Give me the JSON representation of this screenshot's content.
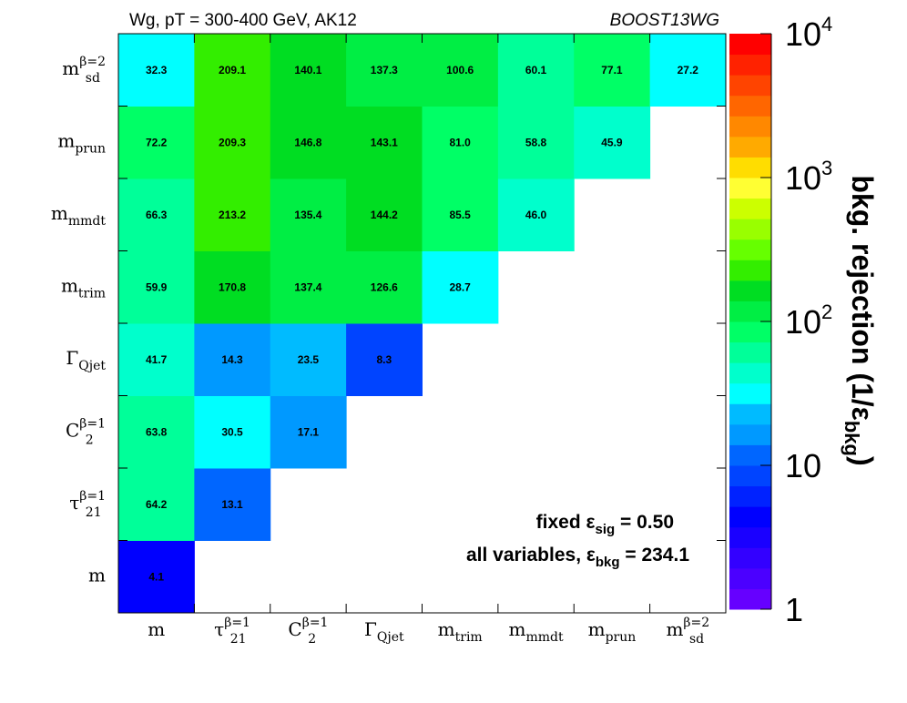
{
  "title_left": "Wg, pT = 300-400 GeV, AK12",
  "title_right": "BOOST13WG",
  "annotations": {
    "fixed_label": "fixed ε",
    "fixed_sub": "sig",
    "fixed_value": " = 0.50",
    "all_label": "all variables, ε",
    "all_sub": "bkg",
    "all_value": " = 234.1"
  },
  "colorbar": {
    "label": "bkg. rejection (1/ε",
    "label_sub": "bkg",
    "label_end": ")",
    "scale": "log",
    "range": [
      1,
      10000
    ],
    "tick_labels": [
      {
        "value": 1,
        "base": "1",
        "exp": ""
      },
      {
        "value": 10,
        "base": "10",
        "exp": ""
      },
      {
        "value": 100,
        "base": "10",
        "exp": "2"
      },
      {
        "value": 1000,
        "base": "10",
        "exp": "3"
      },
      {
        "value": 10000,
        "base": "10",
        "exp": "4"
      }
    ],
    "colors": [
      "#6600ff",
      "#4b00ff",
      "#3300ff",
      "#1a00ff",
      "#0000ff",
      "#0022ff",
      "#0044ff",
      "#0066ff",
      "#0099ff",
      "#00bbff",
      "#00ffff",
      "#00ffcc",
      "#00ff99",
      "#00ff66",
      "#00ee44",
      "#00dd22",
      "#33ee00",
      "#66ff00",
      "#99ff00",
      "#ccff00",
      "#ffff33",
      "#ffdd00",
      "#ffaa00",
      "#ff8800",
      "#ff6600",
      "#ff4400",
      "#ff2200",
      "#ff0000"
    ]
  },
  "chart_data": {
    "type": "heatmap",
    "x_categories": [
      {
        "base": "m",
        "sub": "",
        "sup": ""
      },
      {
        "base": "τ",
        "sub": "21",
        "sup": "β=1"
      },
      {
        "base": "C",
        "sub": "2",
        "sup": "β=1"
      },
      {
        "base": "Γ",
        "sub": "Qjet",
        "sup": ""
      },
      {
        "base": "m",
        "sub": "trim",
        "sup": ""
      },
      {
        "base": "m",
        "sub": "mmdt",
        "sup": ""
      },
      {
        "base": "m",
        "sub": "prun",
        "sup": ""
      },
      {
        "base": "m",
        "sub": "sd",
        "sup": "β=2"
      }
    ],
    "y_categories": [
      {
        "base": "m",
        "sub": "",
        "sup": ""
      },
      {
        "base": "τ",
        "sub": "21",
        "sup": "β=1"
      },
      {
        "base": "C",
        "sub": "2",
        "sup": "β=1"
      },
      {
        "base": "Γ",
        "sub": "Qjet",
        "sup": ""
      },
      {
        "base": "m",
        "sub": "trim",
        "sup": ""
      },
      {
        "base": "m",
        "sub": "mmdt",
        "sup": ""
      },
      {
        "base": "m",
        "sub": "prun",
        "sup": ""
      },
      {
        "base": "m",
        "sub": "sd",
        "sup": "β=2"
      }
    ],
    "values": [
      [
        "4.1",
        null,
        null,
        null,
        null,
        null,
        null,
        null
      ],
      [
        "64.2",
        "13.1",
        null,
        null,
        null,
        null,
        null,
        null
      ],
      [
        "63.8",
        "30.5",
        "17.1",
        null,
        null,
        null,
        null,
        null
      ],
      [
        "41.7",
        "14.3",
        "23.5",
        "8.3",
        null,
        null,
        null,
        null
      ],
      [
        "59.9",
        "170.8",
        "137.4",
        "126.6",
        "28.7",
        null,
        null,
        null
      ],
      [
        "66.3",
        "213.2",
        "135.4",
        "144.2",
        "85.5",
        "46.0",
        null,
        null
      ],
      [
        "72.2",
        "209.3",
        "146.8",
        "143.1",
        "81.0",
        "58.8",
        "45.9",
        null
      ],
      [
        "32.3",
        "209.1",
        "140.1",
        "137.3",
        "100.6",
        "60.1",
        "77.1",
        "27.2"
      ]
    ],
    "z_scale": "log",
    "z_range": [
      1,
      10000
    ]
  }
}
